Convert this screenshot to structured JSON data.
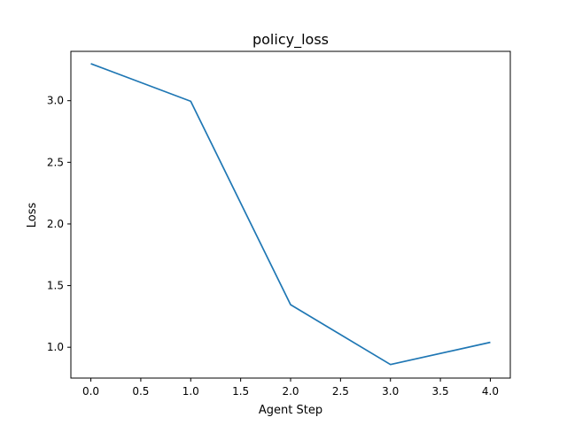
{
  "chart_data": {
    "type": "line",
    "title": "policy_loss",
    "xlabel": "Agent Step",
    "ylabel": "Loss",
    "xlim": [
      -0.2,
      4.2
    ],
    "ylim": [
      0.75,
      3.4
    ],
    "xticks": [
      0.0,
      0.5,
      1.0,
      1.5,
      2.0,
      2.5,
      3.0,
      3.5,
      4.0
    ],
    "xtick_labels": [
      "0.0",
      "0.5",
      "1.0",
      "1.5",
      "2.0",
      "2.5",
      "3.0",
      "3.5",
      "4.0"
    ],
    "yticks": [
      1.0,
      1.5,
      2.0,
      2.5,
      3.0
    ],
    "ytick_labels": [
      "1.0",
      "1.5",
      "2.0",
      "2.5",
      "3.0"
    ],
    "grid": false,
    "series": [
      {
        "color": "#1f77b4",
        "x": [
          0,
          1,
          2,
          3,
          4
        ],
        "y": [
          3.3,
          2.995,
          1.345,
          0.86,
          1.04
        ]
      }
    ]
  }
}
